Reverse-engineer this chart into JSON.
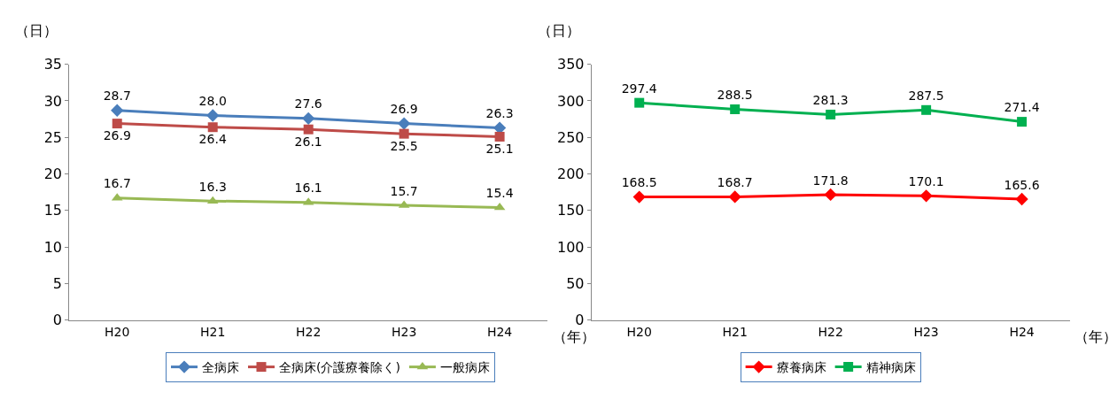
{
  "chart_data": [
    {
      "type": "line",
      "xlabel": "（年）",
      "ylabel": "（日）",
      "categories": [
        "H20",
        "H21",
        "H22",
        "H23",
        "H24"
      ],
      "ylim": [
        0,
        35
      ],
      "yticks": [
        0,
        5,
        10,
        15,
        20,
        25,
        30,
        35
      ],
      "legend": "bottom",
      "series": [
        {
          "name": "全病床",
          "color": "#4a7ebb",
          "marker": "diamond",
          "values": [
            28.7,
            28.0,
            27.6,
            26.9,
            26.3
          ],
          "value_labels": [
            "28.7",
            "28.0",
            "27.6",
            "26.9",
            "26.3"
          ]
        },
        {
          "name": "全病床(介護療養除く)",
          "color": "#be4b48",
          "marker": "square",
          "values": [
            26.9,
            26.4,
            26.1,
            25.5,
            25.1
          ],
          "value_labels": [
            "26.9",
            "26.4",
            "26.1",
            "25.5",
            "25.1"
          ]
        },
        {
          "name": "一般病床",
          "color": "#98b954",
          "marker": "triangle",
          "values": [
            16.7,
            16.3,
            16.1,
            15.7,
            15.4
          ],
          "value_labels": [
            "16.7",
            "16.3",
            "16.1",
            "15.7",
            "15.4"
          ]
        }
      ]
    },
    {
      "type": "line",
      "xlabel": "（年）",
      "ylabel": "（日）",
      "categories": [
        "H20",
        "H21",
        "H22",
        "H23",
        "H24"
      ],
      "ylim": [
        0,
        350
      ],
      "yticks": [
        0,
        50,
        100,
        150,
        200,
        250,
        300,
        350
      ],
      "legend": "bottom",
      "series": [
        {
          "name": "療養病床",
          "color": "#ff0000",
          "marker": "diamond",
          "values": [
            168.5,
            168.7,
            171.8,
            170.1,
            165.6
          ],
          "value_labels": [
            "168.5",
            "168.7",
            "171.8",
            "170.1",
            "165.6"
          ]
        },
        {
          "name": "精神病床",
          "color": "#00b050",
          "marker": "square",
          "values": [
            297.4,
            288.5,
            281.3,
            287.5,
            271.4
          ],
          "value_labels": [
            "297.4",
            "288.5",
            "281.3",
            "287.5",
            "271.4"
          ]
        }
      ]
    }
  ]
}
